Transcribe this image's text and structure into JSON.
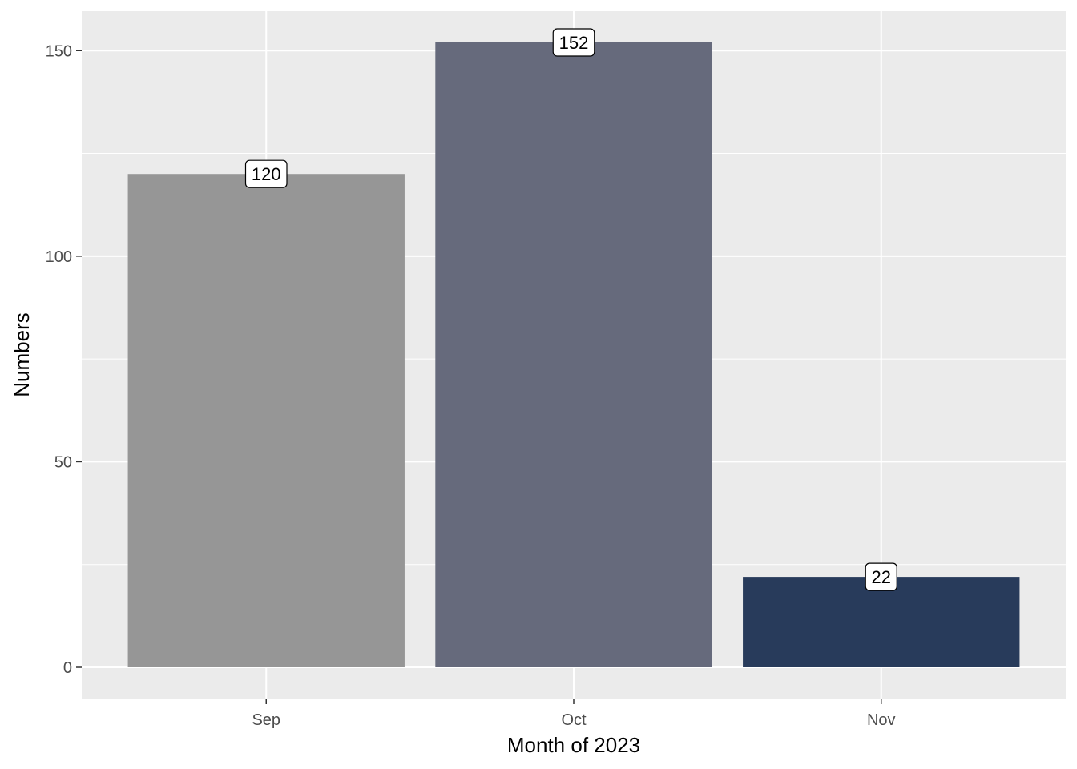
{
  "chart_data": {
    "type": "bar",
    "categories": [
      "Sep",
      "Oct",
      "Nov"
    ],
    "values": [
      120,
      152,
      22
    ],
    "data_labels": [
      "120",
      "152",
      "22"
    ],
    "xlabel": "Month of 2023",
    "ylabel": "Numbers",
    "ylim": [
      -7.6,
      159.6
    ],
    "yticks": [
      0,
      50,
      100,
      150
    ],
    "ytick_labels": [
      "0",
      "50",
      "100",
      "150"
    ],
    "grid": true,
    "legend": "none",
    "colors": {
      "panel_background": "#ebebeb",
      "grid": "#ffffff",
      "bars": [
        "#969696",
        "#666a7c",
        "#283b5b"
      ],
      "tick_text": "#4d4d4d",
      "title_text": "#000000"
    }
  }
}
